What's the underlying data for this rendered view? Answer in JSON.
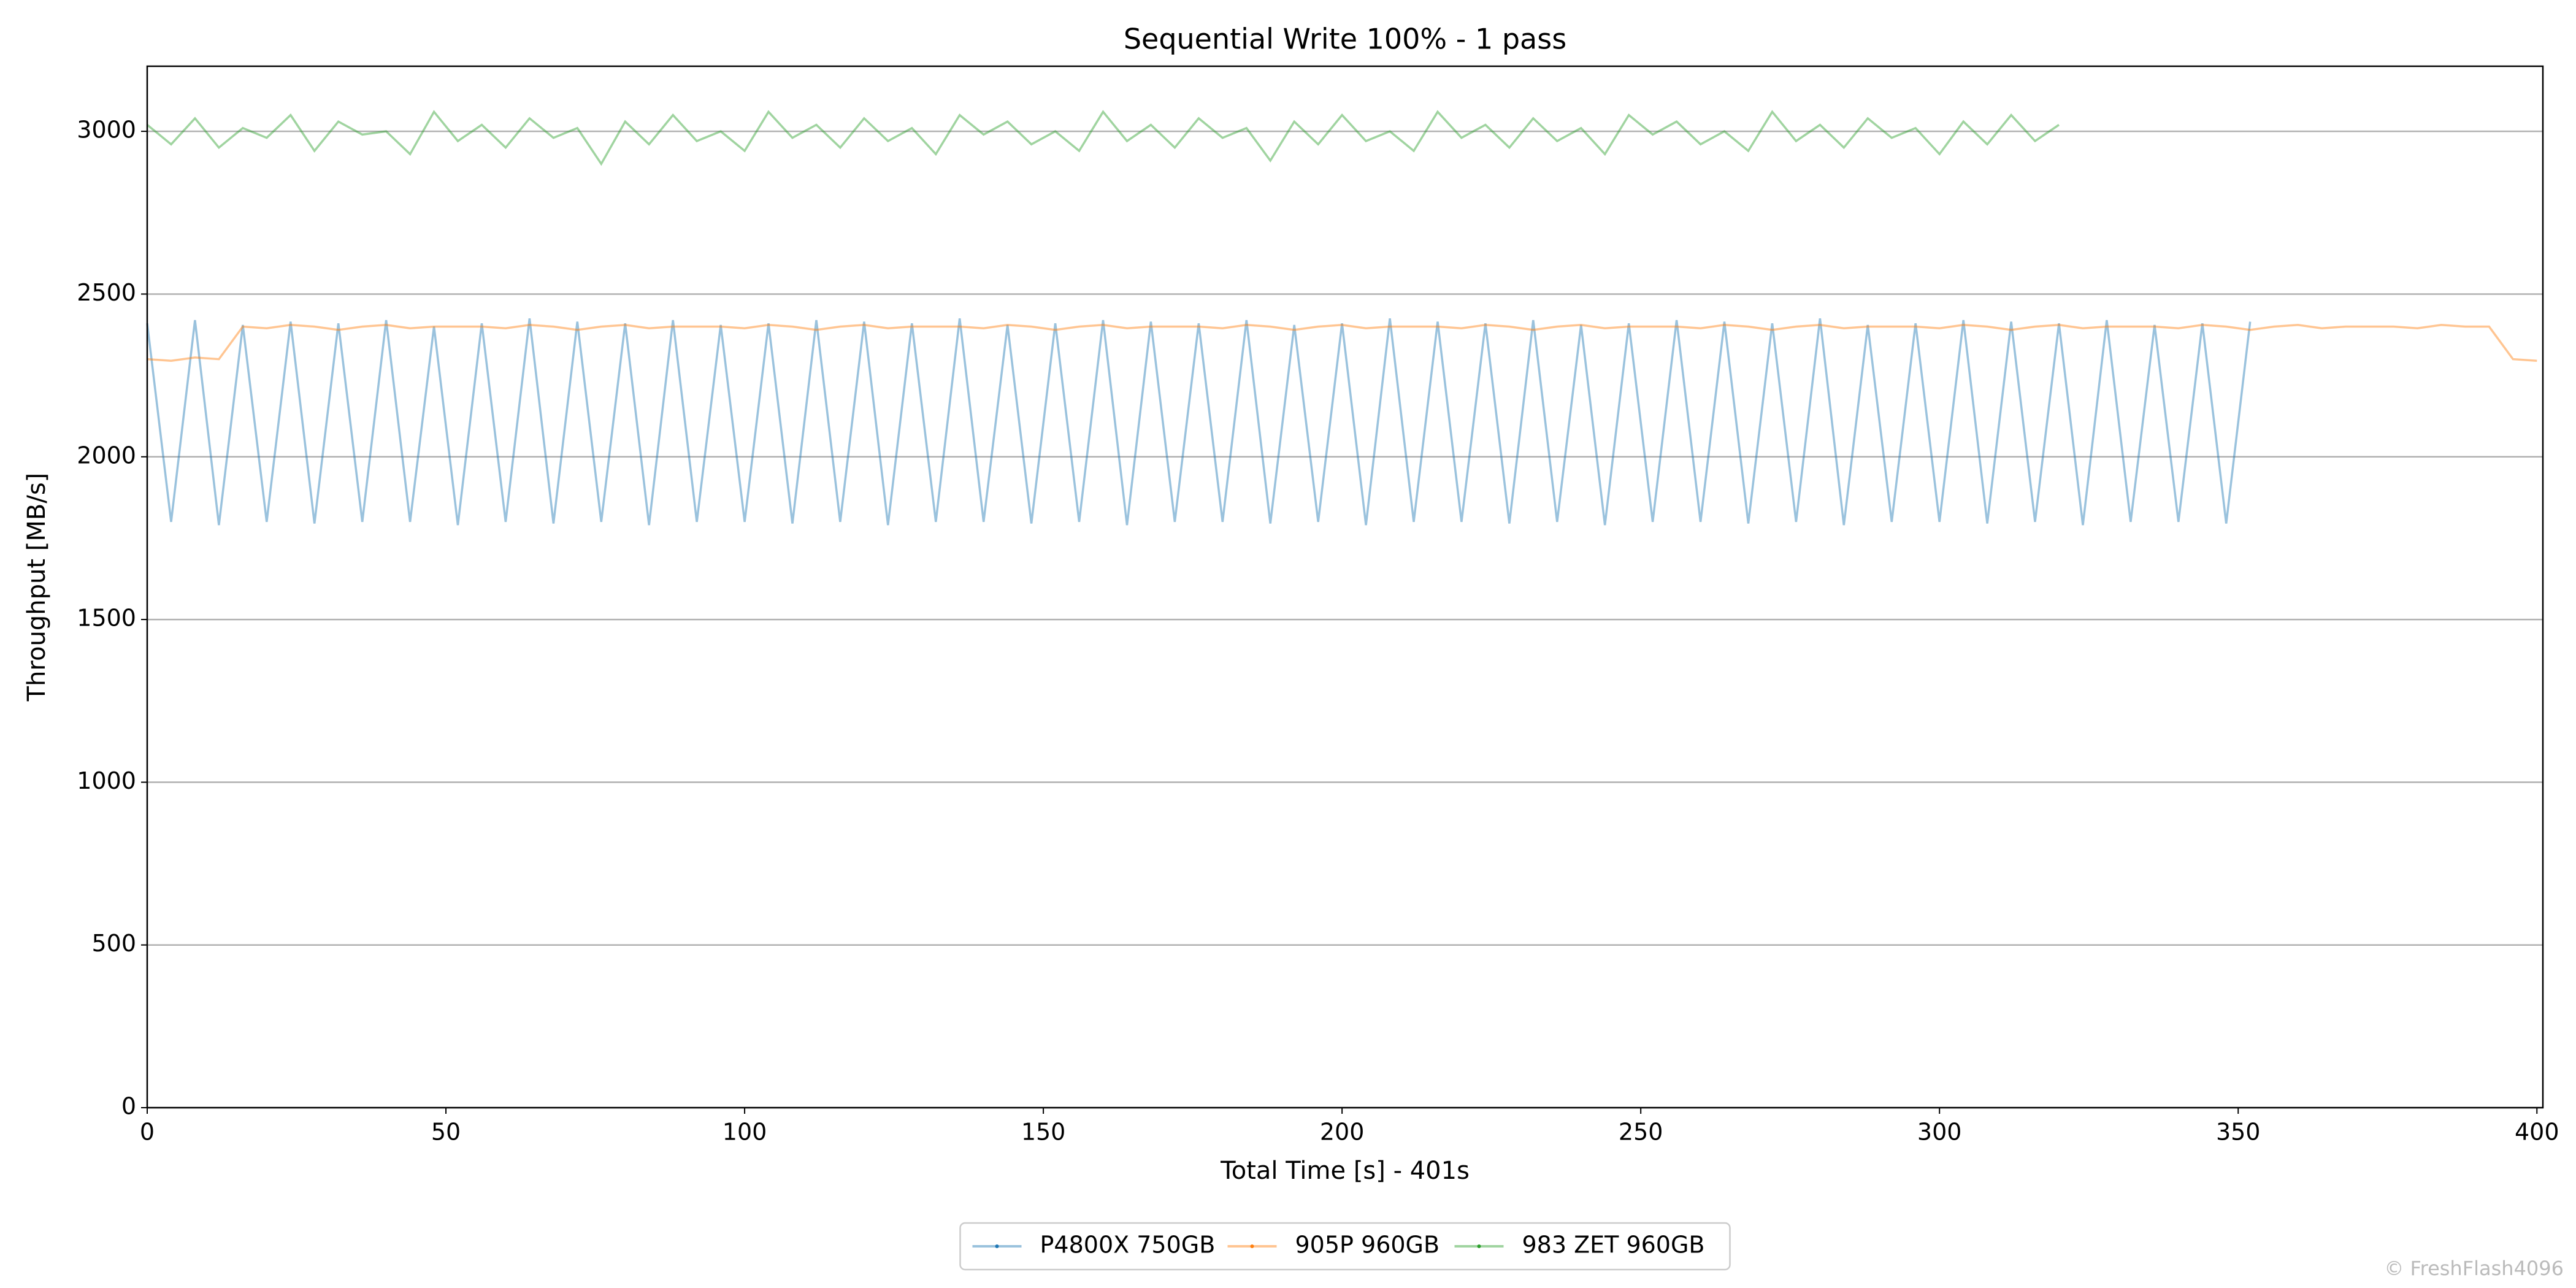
{
  "chart_data": {
    "type": "line",
    "title": "Sequential Write 100% - 1 pass",
    "x_label": "Total Time [s] - 401s",
    "y_label": "Throughput [MB/s]",
    "credit": "© FreshFlash4096",
    "x": [
      0,
      4,
      8,
      12,
      16,
      20,
      24,
      28,
      32,
      36,
      40,
      44,
      48,
      52,
      56,
      60,
      64,
      68,
      72,
      76,
      80,
      84,
      88,
      92,
      96,
      100,
      104,
      108,
      112,
      116,
      120,
      124,
      128,
      132,
      136,
      140,
      144,
      148,
      152,
      156,
      160,
      164,
      168,
      172,
      176,
      180,
      184,
      188,
      192,
      196,
      200,
      204,
      208,
      212,
      216,
      220,
      224,
      228,
      232,
      236,
      240,
      244,
      248,
      252,
      256,
      260,
      264,
      268,
      272,
      276,
      280,
      284,
      288,
      292,
      296,
      300,
      304,
      308,
      312,
      316,
      320,
      324,
      328,
      332,
      336,
      340,
      344,
      348,
      352,
      356,
      360,
      364,
      368,
      372,
      376,
      380,
      384,
      388,
      392,
      396,
      400
    ],
    "series": [
      {
        "name": "P4800X 750GB",
        "color": "#1f77b4",
        "values": [
          2410,
          1800,
          2420,
          1790,
          2405,
          1800,
          2415,
          1795,
          2410,
          1800,
          2420,
          1800,
          2400,
          1790,
          2410,
          1800,
          2425,
          1795,
          2415,
          1800,
          2410,
          1790,
          2420,
          1800,
          2405,
          1800,
          2410,
          1795,
          2420,
          1800,
          2415,
          1790,
          2410,
          1800,
          2425,
          1800,
          2405,
          1795,
          2410,
          1800,
          2420,
          1790,
          2415,
          1800,
          2410,
          1800,
          2420,
          1795,
          2405,
          1800,
          2410,
          1790,
          2425,
          1800,
          2415,
          1800,
          2410,
          1795,
          2420,
          1800,
          2405,
          1790,
          2410,
          1800,
          2420,
          1800,
          2415,
          1795,
          2410,
          1800,
          2425,
          1790,
          2405,
          1800,
          2410,
          1800,
          2420,
          1795,
          2415,
          1800,
          2410,
          1790,
          2420,
          1800,
          2405,
          1800,
          2410,
          1795,
          2415,
          null,
          null,
          null,
          null,
          null,
          null,
          null,
          null,
          null,
          null,
          null,
          null
        ]
      },
      {
        "name": "905P 960GB",
        "color": "#ff7f0e",
        "values": [
          2300,
          2295,
          2305,
          2300,
          2400,
          2395,
          2405,
          2400,
          2390,
          2400,
          2405,
          2395,
          2400,
          2400,
          2400,
          2395,
          2405,
          2400,
          2390,
          2400,
          2405,
          2395,
          2400,
          2400,
          2400,
          2395,
          2405,
          2400,
          2390,
          2400,
          2405,
          2395,
          2400,
          2400,
          2400,
          2395,
          2405,
          2400,
          2390,
          2400,
          2405,
          2395,
          2400,
          2400,
          2400,
          2395,
          2405,
          2400,
          2390,
          2400,
          2405,
          2395,
          2400,
          2400,
          2400,
          2395,
          2405,
          2400,
          2390,
          2400,
          2405,
          2395,
          2400,
          2400,
          2400,
          2395,
          2405,
          2400,
          2390,
          2400,
          2405,
          2395,
          2400,
          2400,
          2400,
          2395,
          2405,
          2400,
          2390,
          2400,
          2405,
          2395,
          2400,
          2400,
          2400,
          2395,
          2405,
          2400,
          2390,
          2400,
          2405,
          2395,
          2400,
          2400,
          2400,
          2395,
          2405,
          2400,
          2400,
          2300,
          2295
        ]
      },
      {
        "name": "983 ZET 960GB",
        "color": "#2ca02c",
        "values": [
          3020,
          2960,
          3040,
          2950,
          3010,
          2980,
          3050,
          2940,
          3030,
          2990,
          3000,
          2930,
          3060,
          2970,
          3020,
          2950,
          3040,
          2980,
          3010,
          2900,
          3030,
          2960,
          3050,
          2970,
          3000,
          2940,
          3060,
          2980,
          3020,
          2950,
          3040,
          2970,
          3010,
          2930,
          3050,
          2990,
          3030,
          2960,
          3000,
          2940,
          3060,
          2970,
          3020,
          2950,
          3040,
          2980,
          3010,
          2910,
          3030,
          2960,
          3050,
          2970,
          3000,
          2940,
          3060,
          2980,
          3020,
          2950,
          3040,
          2970,
          3010,
          2930,
          3050,
          2990,
          3030,
          2960,
          3000,
          2940,
          3060,
          2970,
          3020,
          2950,
          3040,
          2980,
          3010,
          2930,
          3030,
          2960,
          3050,
          2970,
          3020,
          null,
          null,
          null,
          null,
          null,
          null,
          null,
          null,
          null,
          null,
          null,
          null,
          null,
          null,
          null,
          null,
          null,
          null,
          null,
          null
        ]
      }
    ],
    "xlim": [
      0,
      401
    ],
    "ylim": [
      0,
      3200
    ],
    "xticks": [
      0,
      50,
      100,
      150,
      200,
      250,
      300,
      350,
      400
    ],
    "yticks": [
      0,
      500,
      1000,
      1500,
      2000,
      2500,
      3000
    ],
    "grid": true,
    "legend": "bottom"
  }
}
